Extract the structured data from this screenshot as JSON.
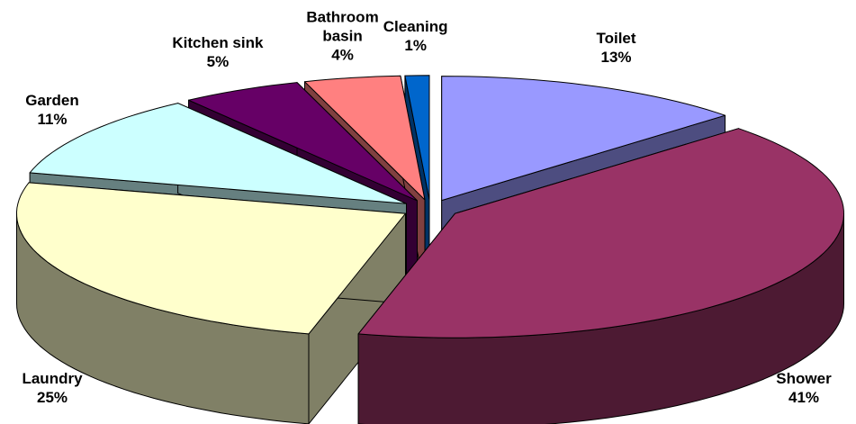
{
  "chart_data": {
    "type": "pie",
    "style": "3d-exploded",
    "categories": [
      "Toilet",
      "Shower",
      "Laundry",
      "Garden",
      "Kitchen sink",
      "Bathroom basin",
      "Cleaning"
    ],
    "values": [
      13,
      41,
      25,
      11,
      5,
      4,
      1
    ],
    "value_labels": [
      "13%",
      "41%",
      "25%",
      "11%",
      "5%",
      "4%",
      "1%"
    ],
    "colors": [
      "#9999ff",
      "#993366",
      "#ffffcc",
      "#ccffff",
      "#660066",
      "#ff8080",
      "#0066cc"
    ]
  }
}
